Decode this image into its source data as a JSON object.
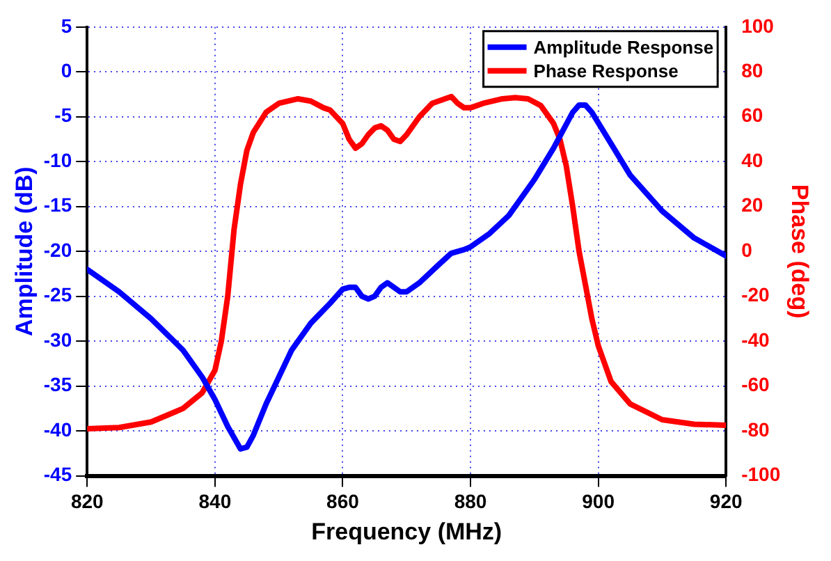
{
  "chart_data": {
    "type": "line",
    "xlabel": "Frequency (MHz)",
    "ylabel": "Amplitude (dB)",
    "y2label": "Phase (deg)",
    "xlim": [
      820,
      920
    ],
    "xticks": [
      820,
      840,
      860,
      880,
      900,
      920
    ],
    "ylim": [
      -45,
      5
    ],
    "yticks": [
      -45,
      -40,
      -35,
      -30,
      -25,
      -20,
      -15,
      -10,
      -5,
      0,
      5
    ],
    "y2lim": [
      -100,
      100
    ],
    "y2ticks": [
      -100,
      -80,
      -60,
      -40,
      -20,
      0,
      20,
      40,
      60,
      80,
      100
    ],
    "grid": true,
    "legend": "top right",
    "marker": "none",
    "line_style": "solid",
    "series": [
      {
        "name": "Amplitude Response",
        "color": "#0000ff",
        "x": [
          820,
          825,
          830,
          835,
          838,
          840,
          842,
          844,
          845,
          846,
          848,
          850,
          852,
          855,
          858,
          860,
          861,
          862,
          863,
          864,
          865,
          866,
          867,
          868,
          869,
          870,
          872,
          875,
          877,
          879,
          880,
          883,
          886,
          890,
          893,
          896,
          897,
          898,
          899,
          902,
          905,
          910,
          915,
          920
        ],
        "values": [
          -22,
          -24.5,
          -27.5,
          -31,
          -34,
          -36.5,
          -39.5,
          -42,
          -41.8,
          -40.5,
          -37,
          -34,
          -31,
          -28,
          -25.8,
          -24.2,
          -24,
          -24,
          -25,
          -25.3,
          -25,
          -24,
          -23.5,
          -24,
          -24.5,
          -24.5,
          -23.5,
          -21.5,
          -20.2,
          -19.8,
          -19.5,
          -18,
          -16,
          -12,
          -8.5,
          -4.5,
          -3.7,
          -3.7,
          -4.5,
          -8,
          -11.5,
          -15.5,
          -18.5,
          -20.5
        ]
      },
      {
        "name": "Phase Response",
        "color": "#ff0000",
        "axis": "y2",
        "x": [
          820,
          825,
          830,
          835,
          838,
          840,
          841,
          842,
          843,
          844,
          845,
          846,
          848,
          850,
          853,
          855,
          857,
          858,
          860,
          861,
          862,
          863,
          864,
          865,
          866,
          867,
          868,
          869,
          870,
          872,
          874,
          876,
          877,
          878,
          879,
          880,
          882,
          885,
          887,
          889,
          891,
          893,
          894,
          895,
          896,
          897,
          898,
          899,
          900,
          902,
          905,
          910,
          915,
          920
        ],
        "values": [
          -79,
          -78.5,
          -76,
          -70,
          -63,
          -53,
          -40,
          -20,
          10,
          30,
          45,
          53,
          62,
          66,
          68,
          67,
          64,
          63,
          57,
          50,
          46,
          48,
          52,
          55,
          56,
          54,
          50,
          49,
          52,
          60,
          66,
          68,
          69,
          66,
          64,
          64,
          66,
          68,
          68.5,
          68,
          65,
          57,
          50,
          38,
          20,
          0,
          -15,
          -30,
          -42,
          -58,
          -68,
          -75,
          -77,
          -77.5
        ]
      }
    ]
  }
}
